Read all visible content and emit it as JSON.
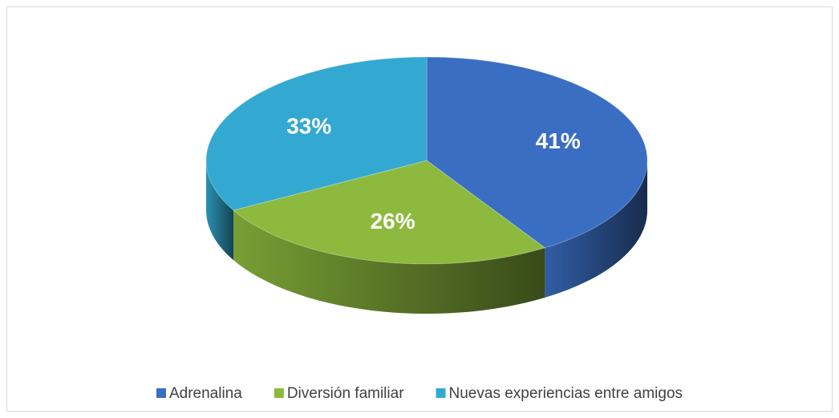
{
  "chart_data": {
    "type": "pie",
    "categories": [
      "Adrenalina",
      "Diversión familiar",
      "Nuevas experiencias entre amigos"
    ],
    "values": [
      41,
      26,
      33
    ],
    "value_labels": [
      "41%",
      "26%",
      "33%"
    ],
    "colors": [
      "#3a6ec2",
      "#8dba3e",
      "#33a9d1"
    ],
    "legend": "bottom"
  }
}
